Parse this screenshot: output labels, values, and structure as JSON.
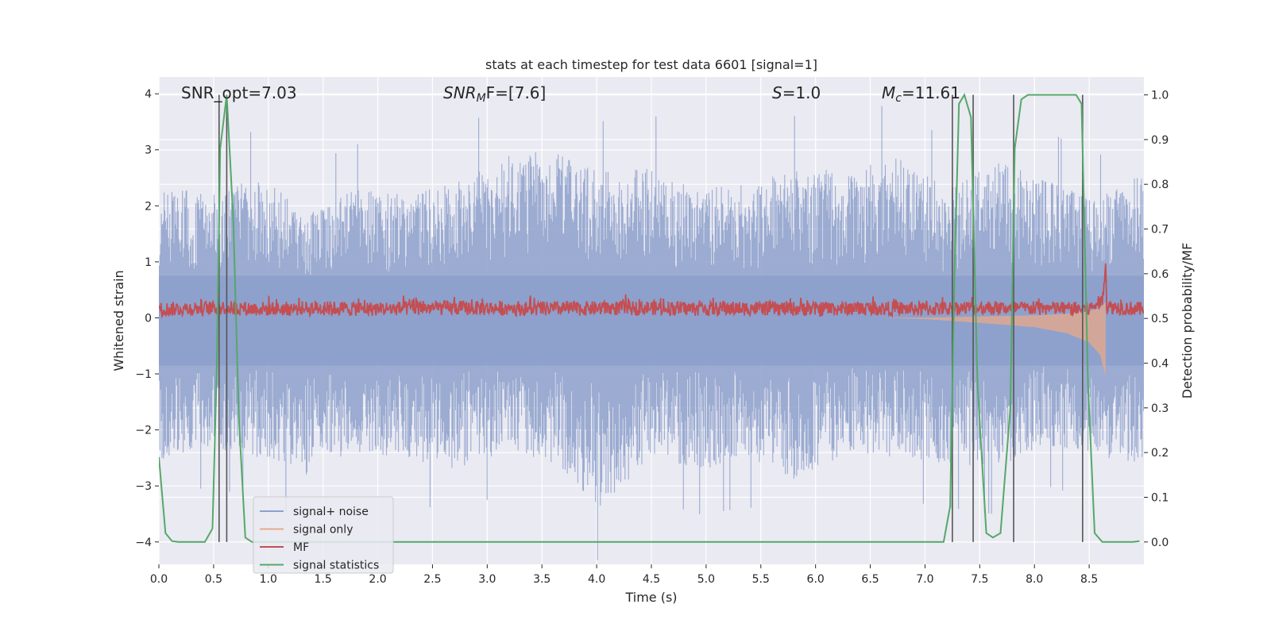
{
  "chart_data": {
    "type": "line",
    "title": "stats at each timestep for test data 6601 [signal=1]",
    "xlabel": "Time (s)",
    "ylabel_left": "Whitened strain",
    "ylabel_right": "Detection probability/MF",
    "xlim": [
      0.0,
      9.0
    ],
    "ylim_left": [
      -4.4,
      4.3
    ],
    "ylim_right": [
      -0.05,
      1.04
    ],
    "xticks": [
      0.0,
      0.5,
      1.0,
      1.5,
      2.0,
      2.5,
      3.0,
      3.5,
      4.0,
      4.5,
      5.0,
      5.5,
      6.0,
      6.5,
      7.0,
      7.5,
      8.0,
      8.5
    ],
    "xtick_labels": [
      "0.0",
      "0.5",
      "1.0",
      "1.5",
      "2.0",
      "2.5",
      "3.0",
      "3.5",
      "4.0",
      "4.5",
      "5.0",
      "5.5",
      "6.0",
      "6.5",
      "7.0",
      "7.5",
      "8.0",
      "8.5"
    ],
    "yticks_left": [
      4,
      3,
      2,
      1,
      0,
      -1,
      -2,
      -3,
      -4
    ],
    "ytick_labels_left": [
      "4",
      "3",
      "2",
      "1",
      "0",
      "−1",
      "−2",
      "−3",
      "−4"
    ],
    "yticks_right": [
      1.0,
      0.9,
      0.8,
      0.7,
      0.6,
      0.5,
      0.4,
      0.3,
      0.2,
      0.1,
      0.0
    ],
    "ytick_labels_right": [
      "1.0",
      "0.9",
      "0.8",
      "0.7",
      "0.6",
      "0.5",
      "0.4",
      "0.3",
      "0.2",
      "0.1",
      "0.0"
    ],
    "annotations": {
      "snr_opt": "SNR_opt=7.03",
      "snr_mf_sym": "SNR",
      "snr_mf_sub": "M",
      "snr_mf_rest": "F=[7.6]",
      "s_sym": "S",
      "s_rest": "=1.0",
      "mc_sym": "M",
      "mc_sub": "c",
      "mc_rest": "=11.61"
    },
    "legend": {
      "position": "lower-left",
      "entries": [
        {
          "label": "signal+ noise",
          "color": "#8da0cb"
        },
        {
          "label": "signal only",
          "color": "#e8a98a"
        },
        {
          "label": "MF",
          "color": "#c44e52"
        },
        {
          "label": "signal statistics",
          "color": "#55a868"
        }
      ]
    },
    "series": [
      {
        "name": "signal statistics",
        "axis": "right",
        "color": "#55a868",
        "x": [
          0.0,
          0.06,
          0.12,
          0.18,
          0.3,
          0.42,
          0.49,
          0.53,
          0.56,
          0.62,
          0.68,
          0.73,
          0.79,
          0.85,
          1.0,
          7.17,
          7.23,
          7.27,
          7.31,
          7.36,
          7.42,
          7.48,
          7.56,
          7.62,
          7.69,
          7.78,
          7.82,
          7.88,
          7.94,
          8.38,
          8.43,
          8.49,
          8.55,
          8.62,
          8.7,
          8.9,
          8.96
        ],
        "y": [
          0.19,
          0.02,
          0.002,
          0.0,
          0.0,
          0.0,
          0.03,
          0.4,
          0.88,
          1.0,
          0.72,
          0.28,
          0.01,
          0.0,
          0.0,
          0.0,
          0.08,
          0.6,
          0.98,
          1.0,
          0.95,
          0.35,
          0.02,
          0.01,
          0.02,
          0.3,
          0.88,
          0.99,
          1.0,
          1.0,
          0.98,
          0.35,
          0.02,
          0.0,
          0.0,
          0.0,
          0.002
        ]
      },
      {
        "name": "MF",
        "axis": "left",
        "color": "#c44e52",
        "x": [
          0.0,
          0.5,
          1.0,
          1.5,
          2.0,
          2.5,
          3.0,
          3.5,
          4.0,
          4.5,
          5.0,
          5.5,
          6.0,
          6.5,
          7.0,
          7.5,
          8.0,
          8.5,
          8.62,
          8.65,
          8.66,
          9.0
        ],
        "y": [
          0.15,
          0.18,
          0.16,
          0.17,
          0.16,
          0.18,
          0.17,
          0.16,
          0.17,
          0.18,
          0.16,
          0.17,
          0.16,
          0.17,
          0.16,
          0.18,
          0.17,
          0.16,
          0.3,
          1.0,
          0.2,
          0.15
        ]
      },
      {
        "name": "signal+ noise",
        "axis": "left",
        "color": "#8da0cb",
        "envelope_upper": [
          2.4,
          2.2,
          2.5,
          2.0,
          2.3,
          2.2,
          2.4,
          2.9,
          3.0,
          2.6,
          2.7,
          2.3,
          2.4,
          2.7,
          2.6,
          2.9,
          2.3,
          2.8,
          2.5,
          2.1,
          2.6
        ],
        "envelope_lower": [
          -2.6,
          -2.3,
          -2.5,
          -2.8,
          -2.4,
          -2.5,
          -2.7,
          -2.4,
          -2.6,
          -3.4,
          -2.5,
          -2.7,
          -2.6,
          -2.9,
          -2.4,
          -2.5,
          -2.6,
          -2.7,
          -2.3,
          -2.5,
          -2.6
        ],
        "envelope_x_step": 0.45
      },
      {
        "name": "signal only",
        "axis": "left",
        "color": "#e8a98a",
        "x": [
          6.6,
          7.0,
          7.5,
          8.0,
          8.3,
          8.5,
          8.6,
          8.65
        ],
        "amplitude": [
          0.0,
          0.02,
          0.08,
          0.15,
          0.25,
          0.4,
          0.6,
          0.95
        ]
      }
    ],
    "detection_markers_x": [
      0.55,
      0.62,
      7.25,
      7.44,
      7.81,
      8.44
    ]
  }
}
